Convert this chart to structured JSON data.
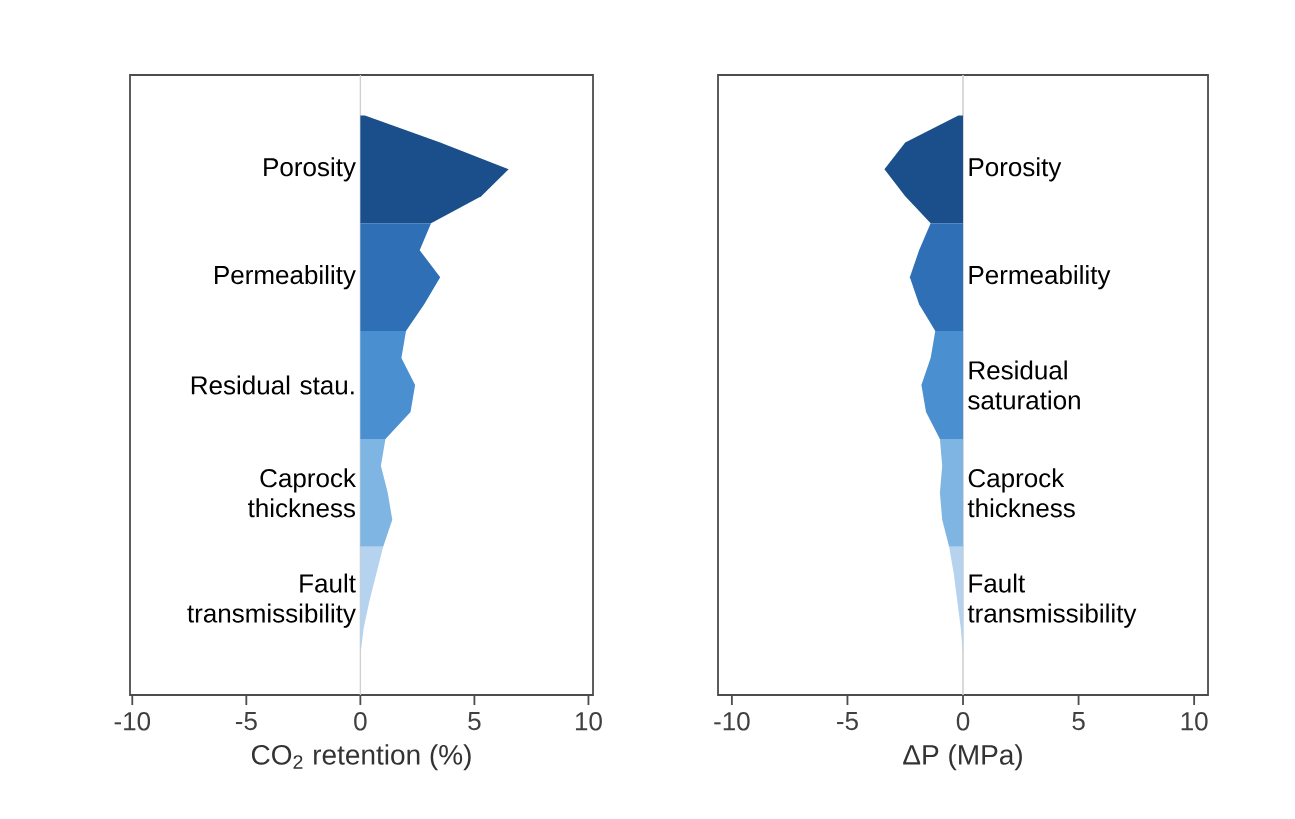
{
  "chart_data": [
    {
      "type": "area",
      "orientation": "horizontal",
      "xlabel": "CO$_{2}$ retention (%)",
      "xlim": [
        -10.1,
        10.2
      ],
      "xticks": [
        -10,
        -5,
        0,
        5,
        10
      ],
      "grid": false,
      "categories": [
        null,
        null,
        null,
        null,
        null,
        null,
        null,
        null,
        null,
        null,
        null,
        null,
        null,
        null,
        null,
        null,
        null,
        null,
        null,
        null,
        null,
        null,
        null
      ],
      "ref_lines": [
        {
          "axis": "x",
          "value": 0,
          "color": "#d0d0d0"
        }
      ],
      "series": [
        {
          "name": "Porosity",
          "color": "#1a4f8b",
          "values": [
            null,
            0.2,
            3.5,
            6.5,
            5.3,
            3.1,
            null,
            null,
            null,
            null,
            null,
            null,
            null,
            null,
            null,
            null,
            null,
            null,
            null,
            null,
            null,
            null,
            null
          ]
        },
        {
          "name": "Permeability",
          "color": "#2f6fb5",
          "values": [
            null,
            null,
            null,
            null,
            null,
            3.1,
            2.6,
            3.5,
            2.8,
            2.0,
            null,
            null,
            null,
            null,
            null,
            null,
            null,
            null,
            null,
            null,
            null,
            null,
            null
          ]
        },
        {
          "name": "Residual stau.",
          "color": "#4a8fcf",
          "values": [
            null,
            null,
            null,
            null,
            null,
            null,
            null,
            null,
            null,
            2.0,
            1.8,
            2.4,
            2.2,
            1.1,
            null,
            null,
            null,
            null,
            null,
            null,
            null,
            null,
            null
          ]
        },
        {
          "name": "Caprock thickness",
          "color": "#7fb5e2",
          "values": [
            null,
            null,
            null,
            null,
            null,
            null,
            null,
            null,
            null,
            null,
            null,
            null,
            null,
            1.1,
            0.9,
            1.2,
            1.4,
            1.0,
            null,
            null,
            null,
            null,
            null
          ]
        },
        {
          "name": "Fault transmissibility",
          "color": "#b5d3ef",
          "values": [
            null,
            null,
            null,
            null,
            null,
            null,
            null,
            null,
            null,
            null,
            null,
            null,
            null,
            null,
            null,
            null,
            null,
            1.0,
            0.7,
            0.4,
            0.15,
            0,
            null
          ]
        }
      ]
    },
    {
      "type": "area",
      "orientation": "horizontal",
      "xlabel": "ΔP (MPa)",
      "xlim": [
        -10.6,
        10.6
      ],
      "xticks": [
        -10,
        -5,
        0,
        5,
        10
      ],
      "grid": false,
      "categories": [
        null,
        null,
        null,
        null,
        null,
        null,
        null,
        null,
        null,
        null,
        null,
        null,
        null,
        null,
        null,
        null,
        null,
        null,
        null,
        null,
        null,
        null,
        null
      ],
      "ref_lines": [
        {
          "axis": "x",
          "value": 0,
          "color": "#d0d0d0"
        }
      ],
      "series": [
        {
          "name": "Porosity",
          "color": "#1a4f8b",
          "values": [
            null,
            -0.2,
            -2.5,
            -3.4,
            -2.5,
            -1.4,
            null,
            null,
            null,
            null,
            null,
            null,
            null,
            null,
            null,
            null,
            null,
            null,
            null,
            null,
            null,
            null,
            null
          ]
        },
        {
          "name": "Permeability",
          "color": "#2f6fb5",
          "values": [
            null,
            null,
            null,
            null,
            null,
            -1.4,
            -1.9,
            -2.3,
            -1.9,
            -1.2,
            null,
            null,
            null,
            null,
            null,
            null,
            null,
            null,
            null,
            null,
            null,
            null,
            null
          ]
        },
        {
          "name": "Residual saturation",
          "color": "#4a8fcf",
          "values": [
            null,
            null,
            null,
            null,
            null,
            null,
            null,
            null,
            null,
            -1.2,
            -1.4,
            -1.8,
            -1.6,
            -1.0,
            null,
            null,
            null,
            null,
            null,
            null,
            null,
            null,
            null
          ]
        },
        {
          "name": "Caprock thickness",
          "color": "#7fb5e2",
          "values": [
            null,
            null,
            null,
            null,
            null,
            null,
            null,
            null,
            null,
            null,
            null,
            null,
            null,
            -1.0,
            -0.9,
            -1.0,
            -0.9,
            -0.6,
            null,
            null,
            null,
            null,
            null
          ]
        },
        {
          "name": "Fault transmissibility",
          "color": "#b5d3ef",
          "values": [
            null,
            null,
            null,
            null,
            null,
            null,
            null,
            null,
            null,
            null,
            null,
            null,
            null,
            null,
            null,
            null,
            null,
            -0.6,
            -0.4,
            -0.25,
            -0.1,
            0,
            null
          ]
        }
      ]
    }
  ]
}
